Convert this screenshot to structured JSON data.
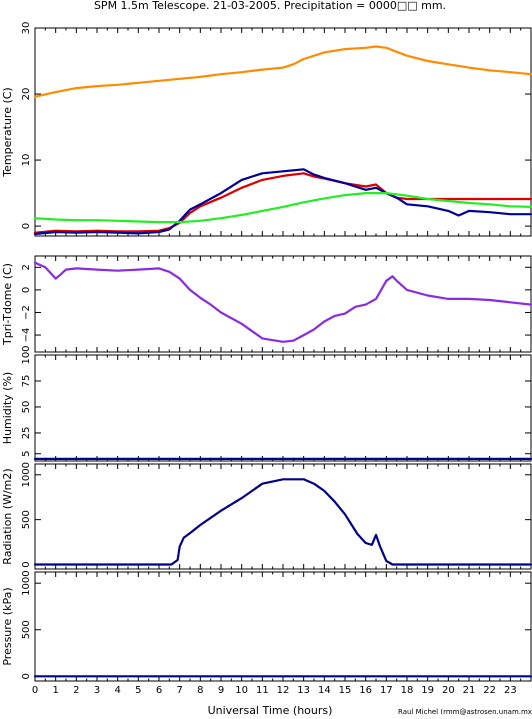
{
  "title": "SPM 1.5m Telescope. 21-03-2005. Precipitation = 0000□□ mm.",
  "credit": "Raul Michel (rmm@astrosen.unam.mx)",
  "xlabel": "Universal Time (hours)",
  "chart_data": [
    {
      "type": "scatter",
      "ylabel": "Temperature (C)",
      "xlim": [
        0,
        24
      ],
      "ylim": [
        -1.5,
        30
      ],
      "yticks": [
        0,
        10,
        20,
        30
      ],
      "series": [
        {
          "color": "#ff8c00",
          "x": [
            0,
            1,
            2,
            3,
            4,
            5,
            6,
            7,
            8,
            9,
            10,
            11,
            12,
            12.5,
            13,
            14,
            15,
            16,
            16.5,
            17,
            17.5,
            18,
            19,
            20,
            21,
            22,
            23,
            24
          ],
          "y": [
            19.6,
            20.3,
            20.9,
            21.2,
            21.4,
            21.7,
            22.0,
            22.3,
            22.6,
            23.0,
            23.3,
            23.7,
            24.0,
            24.5,
            25.3,
            26.3,
            26.8,
            27.0,
            27.2,
            27.0,
            26.4,
            25.8,
            25.0,
            24.5,
            24.0,
            23.6,
            23.3,
            23.0
          ]
        },
        {
          "color": "#dd0000",
          "x": [
            0,
            1,
            2,
            3,
            4,
            5,
            6,
            6.5,
            7,
            7.5,
            8,
            9,
            10,
            11,
            12,
            13,
            13.5,
            14,
            15,
            16,
            16.5,
            17,
            17.5,
            18,
            19,
            20,
            21,
            22,
            23,
            24
          ],
          "y": [
            -1.0,
            -0.7,
            -0.8,
            -0.7,
            -0.8,
            -0.8,
            -0.7,
            -0.3,
            0.5,
            2.0,
            3.0,
            4.3,
            5.8,
            7.0,
            7.6,
            8.0,
            7.5,
            7.2,
            6.5,
            6.0,
            6.3,
            5.0,
            4.3,
            4.1,
            4.1,
            4.1,
            4.1,
            4.1,
            4.1,
            4.1
          ]
        },
        {
          "color": "#000099",
          "x": [
            0,
            1,
            2,
            3,
            4,
            5,
            6,
            6.5,
            7,
            7.5,
            8,
            9,
            10,
            11,
            12,
            13,
            13.5,
            14,
            15,
            16,
            16.5,
            17,
            17.5,
            18,
            19,
            20,
            20.5,
            21,
            22,
            23,
            24
          ],
          "y": [
            -1.2,
            -0.9,
            -1.0,
            -0.9,
            -1.0,
            -1.1,
            -0.9,
            -0.5,
            0.8,
            2.5,
            3.3,
            5.0,
            7.0,
            8.0,
            8.3,
            8.6,
            7.8,
            7.3,
            6.5,
            5.5,
            5.8,
            5.0,
            4.3,
            3.3,
            3.0,
            2.3,
            1.6,
            2.3,
            2.1,
            1.8,
            1.8
          ]
        },
        {
          "color": "#22ee22",
          "x": [
            0,
            1,
            2,
            3,
            4,
            5,
            6,
            7,
            8,
            9,
            10,
            11,
            12,
            13,
            14,
            15,
            16,
            17,
            18,
            19,
            20,
            21,
            22,
            23,
            24
          ],
          "y": [
            1.2,
            1.0,
            0.9,
            0.9,
            0.8,
            0.7,
            0.6,
            0.6,
            0.8,
            1.2,
            1.7,
            2.3,
            2.9,
            3.6,
            4.2,
            4.7,
            5.0,
            5.0,
            4.6,
            4.1,
            3.8,
            3.5,
            3.3,
            3.0,
            2.9
          ]
        }
      ]
    },
    {
      "type": "scatter",
      "ylabel": "Tpri-Tdome (C)",
      "xlim": [
        0,
        24
      ],
      "ylim": [
        -5.5,
        3
      ],
      "yticks": [
        2,
        0,
        -2,
        -4
      ],
      "yticklabels": [
        "2",
        "0",
        "−2",
        "−4"
      ],
      "series": [
        {
          "color": "#8a2be2",
          "x": [
            0,
            0.5,
            1,
            1.2,
            1.5,
            2,
            3,
            4,
            5,
            6,
            6.5,
            7,
            7.5,
            8,
            8.5,
            9,
            10,
            11,
            12,
            12.5,
            13,
            13.5,
            14,
            14.5,
            15,
            15.5,
            16,
            16.5,
            17,
            17.3,
            17.5,
            18,
            19,
            20,
            21,
            22,
            23,
            24
          ],
          "y": [
            2.4,
            2.0,
            1.0,
            1.3,
            1.8,
            1.9,
            1.8,
            1.7,
            1.8,
            1.9,
            1.6,
            1.0,
            0.0,
            -0.7,
            -1.3,
            -2.0,
            -3.0,
            -4.3,
            -4.6,
            -4.5,
            -4.0,
            -3.5,
            -2.8,
            -2.3,
            -2.1,
            -1.5,
            -1.3,
            -0.8,
            0.8,
            1.2,
            0.8,
            0.0,
            -0.5,
            -0.8,
            -0.8,
            -0.9,
            -1.1,
            -1.3
          ]
        }
      ]
    },
    {
      "type": "line",
      "ylabel": "Humidity (%)",
      "xlim": [
        0,
        24
      ],
      "ylim": [
        -2,
        100
      ],
      "yticks": [
        100,
        75,
        50,
        25,
        5
      ],
      "series": [
        {
          "color": "#00008b",
          "x": [
            0,
            24
          ],
          "y": [
            0,
            0
          ]
        }
      ]
    },
    {
      "type": "line",
      "ylabel": "Radiation (W/m2)",
      "xlim": [
        0,
        24
      ],
      "ylim": [
        -50,
        1120
      ],
      "yticks": [
        0,
        500,
        1000
      ],
      "series": [
        {
          "color": "#00008b",
          "x": [
            0,
            6.6,
            6.9,
            7.0,
            7.2,
            7.5,
            8,
            9,
            10,
            11,
            12,
            12.5,
            13,
            13.5,
            14,
            14.5,
            15,
            15.3,
            15.6,
            16,
            16.3,
            16.5,
            16.7,
            17,
            17.3,
            24
          ],
          "y": [
            0,
            0,
            50,
            200,
            300,
            350,
            440,
            600,
            740,
            900,
            950,
            950,
            950,
            900,
            820,
            700,
            560,
            450,
            340,
            240,
            220,
            330,
            200,
            40,
            0,
            0
          ]
        }
      ]
    },
    {
      "type": "line",
      "ylabel": "Pressure (kPa)",
      "xlim": [
        0,
        24
      ],
      "ylim": [
        -50,
        1120
      ],
      "yticks": [
        0,
        500,
        1000
      ],
      "series": [
        {
          "color": "#00008b",
          "x": [
            0,
            24
          ],
          "y": [
            0,
            0
          ]
        }
      ]
    }
  ]
}
